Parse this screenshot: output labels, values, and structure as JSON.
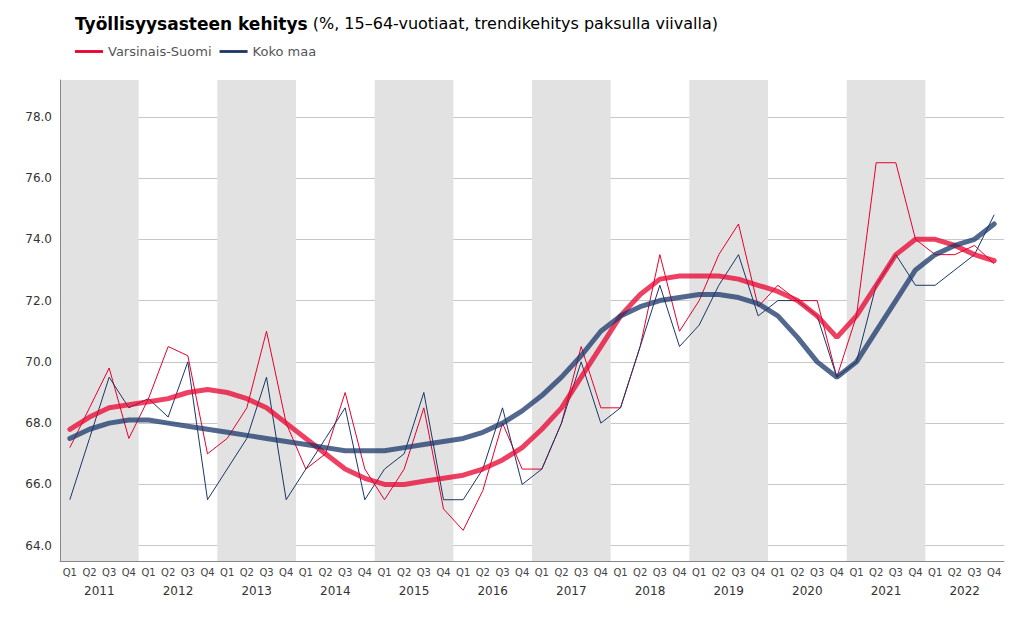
{
  "chart_data": {
    "type": "line",
    "title": "Työllisyysasteen kehitys",
    "subtitle": " (%, 15–64-vuotiaat, trendikehitys paksulla viivalla)",
    "categories": [
      "Q1",
      "Q2",
      "Q3",
      "Q4",
      "Q1",
      "Q2",
      "Q3",
      "Q4",
      "Q1",
      "Q2",
      "Q3",
      "Q4",
      "Q1",
      "Q2",
      "Q3",
      "Q4",
      "Q1",
      "Q2",
      "Q3",
      "Q4",
      "Q1",
      "Q2",
      "Q3",
      "Q4",
      "Q1",
      "Q2",
      "Q3",
      "Q4",
      "Q1",
      "Q2",
      "Q3",
      "Q4",
      "Q1",
      "Q2",
      "Q3",
      "Q4",
      "Q1",
      "Q2",
      "Q3",
      "Q4",
      "Q1",
      "Q2",
      "Q3",
      "Q4",
      "Q1",
      "Q2",
      "Q3",
      "Q4"
    ],
    "years": [
      2011,
      2011,
      2011,
      2011,
      2012,
      2012,
      2012,
      2012,
      2013,
      2013,
      2013,
      2013,
      2014,
      2014,
      2014,
      2014,
      2015,
      2015,
      2015,
      2015,
      2016,
      2016,
      2016,
      2016,
      2017,
      2017,
      2017,
      2017,
      2018,
      2018,
      2018,
      2018,
      2019,
      2019,
      2019,
      2019,
      2020,
      2020,
      2020,
      2020,
      2021,
      2021,
      2021,
      2021,
      2022,
      2022,
      2022,
      2022
    ],
    "series": [
      {
        "name": "Varsinais-Suomi",
        "color": "#e8002d",
        "values": [
          67.2,
          68.5,
          69.8,
          67.5,
          68.8,
          70.5,
          70.2,
          67.0,
          67.5,
          68.5,
          71.0,
          68.0,
          66.5,
          67.0,
          69.0,
          66.5,
          65.5,
          66.5,
          68.5,
          65.2,
          64.5,
          65.8,
          68.0,
          66.5,
          66.5,
          68.0,
          70.5,
          68.5,
          68.5,
          70.5,
          73.5,
          71.0,
          72.0,
          73.5,
          74.5,
          71.8,
          72.5,
          72.0,
          72.0,
          69.5,
          71.5,
          76.5,
          76.5,
          74.0,
          73.5,
          73.5,
          73.8,
          73.2
        ],
        "trend": [
          67.8,
          68.2,
          68.5,
          68.6,
          68.7,
          68.8,
          69.0,
          69.1,
          69.0,
          68.8,
          68.5,
          68.0,
          67.5,
          67.0,
          66.5,
          66.2,
          66.0,
          66.0,
          66.1,
          66.2,
          66.3,
          66.5,
          66.8,
          67.2,
          67.8,
          68.5,
          69.5,
          70.5,
          71.5,
          72.2,
          72.7,
          72.8,
          72.8,
          72.8,
          72.7,
          72.5,
          72.3,
          72.0,
          71.5,
          70.8,
          71.5,
          72.5,
          73.5,
          74.0,
          74.0,
          73.8,
          73.5,
          73.3
        ]
      },
      {
        "name": "Koko maa",
        "color": "#1a3668",
        "values": [
          65.5,
          67.5,
          69.5,
          68.5,
          68.8,
          68.2,
          70.0,
          65.5,
          66.5,
          67.5,
          69.5,
          65.5,
          66.5,
          67.5,
          68.5,
          65.5,
          66.5,
          67.0,
          69.0,
          65.5,
          65.5,
          66.5,
          68.5,
          66.0,
          66.5,
          68.0,
          70.0,
          68.0,
          68.5,
          70.5,
          72.5,
          70.5,
          71.2,
          72.5,
          73.5,
          71.5,
          72.0,
          72.0,
          71.5,
          69.5,
          70.0,
          72.5,
          73.5,
          72.5,
          72.5,
          73.0,
          73.5,
          74.8
        ],
        "trend": [
          67.5,
          67.8,
          68.0,
          68.1,
          68.1,
          68.0,
          67.9,
          67.8,
          67.7,
          67.6,
          67.5,
          67.4,
          67.3,
          67.2,
          67.1,
          67.1,
          67.1,
          67.2,
          67.3,
          67.4,
          67.5,
          67.7,
          68.0,
          68.4,
          68.9,
          69.5,
          70.2,
          71.0,
          71.5,
          71.8,
          72.0,
          72.1,
          72.2,
          72.2,
          72.1,
          71.9,
          71.5,
          70.8,
          70.0,
          69.5,
          70.0,
          71.0,
          72.0,
          73.0,
          73.5,
          73.8,
          74.0,
          74.5
        ]
      }
    ],
    "ylim": [
      63.5,
      79.2
    ],
    "yticks": [
      {
        "value": 64,
        "label": "64.0"
      },
      {
        "value": 66,
        "label": "66.0"
      },
      {
        "value": 68,
        "label": "68.0"
      },
      {
        "value": 70,
        "label": "70.0"
      },
      {
        "value": 72,
        "label": "72.0"
      },
      {
        "value": 74,
        "label": "74.0"
      },
      {
        "value": 76,
        "label": "76.0"
      },
      {
        "value": 78,
        "label": "78.0"
      }
    ],
    "grid": true,
    "legend": "upper left"
  }
}
